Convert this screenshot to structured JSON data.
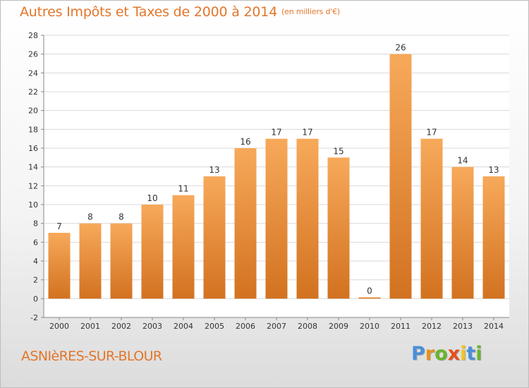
{
  "title": "Autres Impôts et Taxes de 2000 à 2014",
  "unit": "(en milliers d'€)",
  "commune": "ASNIèRES-SUR-BLOUR",
  "logo": {
    "letters": [
      "P",
      "r",
      "o",
      "x",
      "i",
      "t",
      "i"
    ],
    "colors": [
      "#4a90d9",
      "#e8901e",
      "#6ab42d",
      "#e84e1b",
      "#f0c419",
      "#4a90d9",
      "#6ab42d"
    ]
  },
  "colors": {
    "bar_light": "#f7a95a",
    "bar_dark": "#d27220",
    "accent": "#e2762a",
    "grid": "#d9d9d9"
  },
  "chart_data": {
    "type": "bar",
    "categories": [
      "2000",
      "2001",
      "2002",
      "2003",
      "2004",
      "2005",
      "2006",
      "2007",
      "2008",
      "2009",
      "2010",
      "2011",
      "2012",
      "2013",
      "2014"
    ],
    "values": [
      7,
      8,
      8,
      10,
      11,
      13,
      16,
      17,
      17,
      15,
      0,
      26,
      17,
      14,
      13
    ],
    "data_labels": [
      "7",
      "8",
      "8",
      "10",
      "11",
      "13",
      "16",
      "17",
      "17",
      "15",
      "0",
      "26",
      "17",
      "14",
      "13"
    ],
    "ylim": [
      -2,
      28
    ],
    "yticks": [
      -2,
      0,
      2,
      4,
      6,
      8,
      10,
      12,
      14,
      16,
      18,
      20,
      22,
      24,
      26,
      28
    ],
    "grid": true,
    "xlabel": "",
    "ylabel": ""
  }
}
